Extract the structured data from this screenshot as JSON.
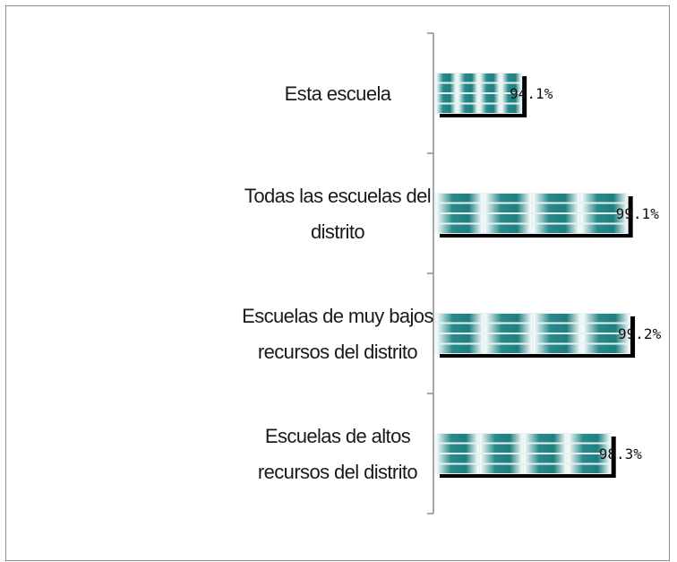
{
  "chart_data": {
    "type": "bar",
    "orientation": "horizontal",
    "categories": [
      [
        "Esta escuela"
      ],
      [
        "Todas las escuelas del",
        "distrito"
      ],
      [
        "Escuelas de muy bajos",
        "recursos del distrito"
      ],
      [
        "Escuelas de altos",
        "recursos del distrito"
      ]
    ],
    "values": [
      94.1,
      99.1,
      99.2,
      98.3
    ],
    "value_labels": [
      "94.1%",
      "99.1%",
      "99.2%",
      "98.3%"
    ],
    "xlim": [
      90,
      100
    ],
    "grid": false,
    "legend": "none",
    "colors": {
      "bar_fill": "#1f7f80",
      "bar_light": "#e6f2f2",
      "shadow": "#000000",
      "axis": "#8c8c8c",
      "frame": "#8c8c8c"
    }
  }
}
